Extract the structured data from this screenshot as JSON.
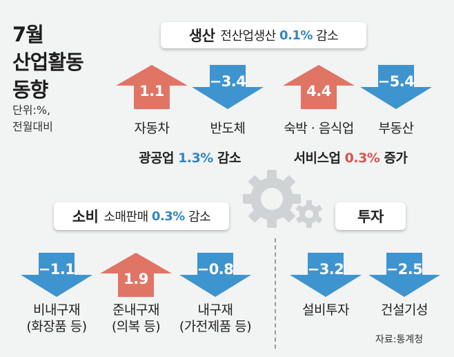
{
  "title": {
    "line1": "7월",
    "line2": "산업활동",
    "line3": "동향"
  },
  "unit": {
    "line1": "단위:%,",
    "line2": "전월대비"
  },
  "production": {
    "heading": "생산",
    "text": "전산업생산",
    "value": "0.1%",
    "trend": "감소"
  },
  "mining": {
    "text": "광공업",
    "value": "1.3%",
    "trend": "감소"
  },
  "services": {
    "text": "서비스업",
    "value": "0.3%",
    "trend": "증가"
  },
  "consumption": {
    "heading": "소비",
    "text": "소매판매",
    "value": "0.3%",
    "trend": "감소"
  },
  "investment": {
    "heading": "투자"
  },
  "items": [
    {
      "value": "1.1",
      "direction": "up",
      "label": "자동차"
    },
    {
      "value": "−3.4",
      "direction": "down",
      "label": "반도체"
    },
    {
      "value": "4.4",
      "direction": "up",
      "label": "숙박 · 음식업"
    },
    {
      "value": "−5.4",
      "direction": "down",
      "label": "부동산"
    },
    {
      "value": "−1.1",
      "direction": "down",
      "label": "비내구재",
      "sub": "(화장품 등)"
    },
    {
      "value": "1.9",
      "direction": "up",
      "label": "준내구재",
      "sub": "(의복 등)"
    },
    {
      "value": "−0.8",
      "direction": "down",
      "label": "내구재",
      "sub": "(가전제품 등)"
    },
    {
      "value": "−3.2",
      "direction": "down",
      "label": "설비투자"
    },
    {
      "value": "−2.5",
      "direction": "down",
      "label": "건설기성"
    }
  ],
  "source": "자료:통계청",
  "colors": {
    "up": "#e07565",
    "down": "#3e94cf",
    "positive_text": "#d9534a",
    "negative_text": "#2f86c2"
  }
}
